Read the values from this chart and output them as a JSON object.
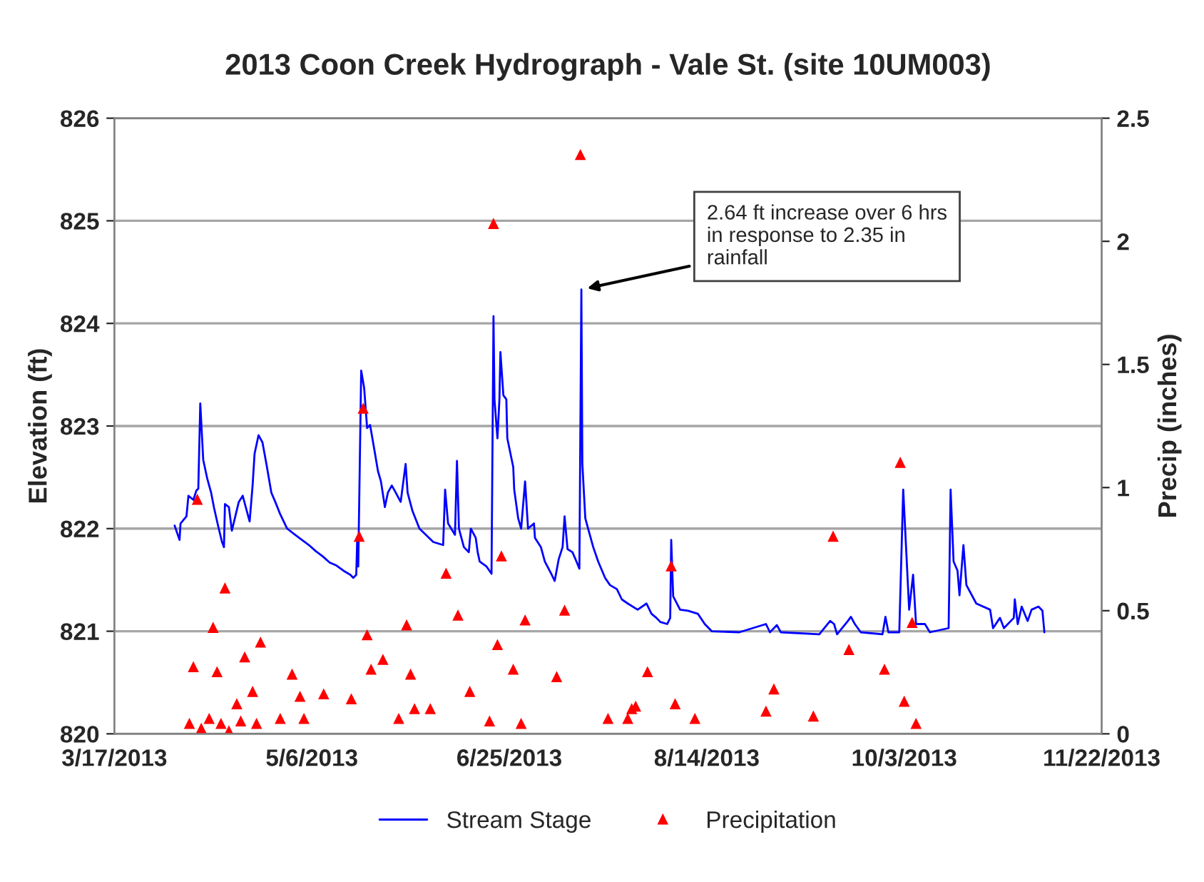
{
  "chart_data": {
    "type": "line",
    "title": "2013 Coon Creek Hydrograph - Vale St. (site 10UM003)",
    "ylabel": "Elevation (ft)",
    "y2label": "Precip (inches)",
    "xlim": [
      "2013-03-17",
      "2013-11-22"
    ],
    "xticks": [
      {
        "value": "2013-03-17",
        "label": "3/17/2013"
      },
      {
        "value": "2013-05-06",
        "label": "5/6/2013"
      },
      {
        "value": "2013-06-25",
        "label": "6/25/2013"
      },
      {
        "value": "2013-08-14",
        "label": "8/14/2013"
      },
      {
        "value": "2013-10-03",
        "label": "10/3/2013"
      },
      {
        "value": "2013-11-22",
        "label": "11/22/2013"
      }
    ],
    "ylim": [
      820,
      826
    ],
    "yticks": [
      820,
      821,
      822,
      823,
      824,
      825,
      826
    ],
    "y2lim": [
      0,
      2.5
    ],
    "y2ticks": [
      0,
      0.5,
      1,
      1.5,
      2,
      2.5
    ],
    "grid": "y",
    "legend": "bottom",
    "annotations": [
      {
        "text": "2.64 ft increase over 6 hrs\nin response to 2.35 in\nrainfall",
        "x": "2013-07-13T06:00",
        "y": 824.33
      }
    ],
    "series": [
      {
        "name": "Stream Stage",
        "color": "#0000ff",
        "marker": "none",
        "line_style": "solid",
        "x": [
          "2013-04-01T06:00",
          "2013-04-02T12:00",
          "2013-04-02T18:00",
          "2013-04-04T06:00",
          "2013-04-04T18:00",
          "2013-04-06",
          "2013-04-06T18:00",
          "2013-04-07T06:00",
          "2013-04-07T18:00",
          "2013-04-08T12:00",
          "2013-04-09T12:00",
          "2013-04-10T12:00",
          "2013-04-11T06:00",
          "2013-04-12T06:00",
          "2013-04-13T06:00",
          "2013-04-13T18:00",
          "2013-04-14",
          "2013-04-15",
          "2013-04-15T18:00",
          "2013-04-16T18:00",
          "2013-04-17T12:00",
          "2013-04-18T12:00",
          "2013-04-19T18:00",
          "2013-04-20T06:00",
          "2013-04-21",
          "2013-04-21T12:00",
          "2013-04-22T12:00",
          "2013-04-23T12:00",
          "2013-04-24T12:00",
          "2013-04-25T18:00",
          "2013-04-26T18:00",
          "2013-04-28",
          "2013-04-29T18:00",
          "2013-05-01T18:00",
          "2013-05-03T12:00",
          "2013-05-05T06:00",
          "2013-05-07",
          "2013-05-08T18:00",
          "2013-05-10T12:00",
          "2013-05-12T06:00",
          "2013-05-14",
          "2013-05-15T18:00",
          "2013-05-16T12:00",
          "2013-05-17T06:00",
          "2013-05-17T12:00",
          "2013-05-17T18:00",
          "2013-05-18T12:00",
          "2013-05-19T06:00",
          "2013-05-20",
          "2013-05-20T18:00",
          "2013-05-22",
          "2013-05-22T18:00",
          "2013-05-23T12:00",
          "2013-05-24T12:00",
          "2013-05-25T06:00",
          "2013-05-26T06:00",
          "2013-05-27T06:00",
          "2013-05-28T12:00",
          "2013-05-29T18:00",
          "2013-05-30T06:00",
          "2013-05-31T12:00",
          "2013-06-02T06:00",
          "2013-06-05T18:00",
          "2013-06-08T06:00",
          "2013-06-08T18:00",
          "2013-06-09T12:00",
          "2013-06-11T06:00",
          "2013-06-11T18:00",
          "2013-06-12T06:00",
          "2013-06-13T12:00",
          "2013-06-14T18:00",
          "2013-06-15T06:00",
          "2013-06-16T12:00",
          "2013-06-17",
          "2013-06-17T12:00",
          "2013-06-19T06:00",
          "2013-06-20T12:00",
          "2013-06-21",
          "2013-06-21T06:00",
          "2013-06-22",
          "2013-06-22T12:00",
          "2013-06-22T18:00",
          "2013-06-23T12:00",
          "2013-06-24T06:00",
          "2013-06-24T12:00",
          "2013-06-26",
          "2013-06-26T06:00",
          "2013-06-27T06:00",
          "2013-06-28",
          "2013-06-29",
          "2013-06-29T18:00",
          "2013-07-01T06:00",
          "2013-07-01T12:00",
          "2013-07-03",
          "2013-07-04",
          "2013-07-05T18:00",
          "2013-07-06T12:00",
          "2013-07-07T12:00",
          "2013-07-08T12:00",
          "2013-07-09",
          "2013-07-09T18:00",
          "2013-07-11",
          "2013-07-12",
          "2013-07-12T18:00",
          "2013-07-13T06:00",
          "2013-07-13T12:00",
          "2013-07-14T06:00",
          "2013-07-15T06:00",
          "2013-07-16T06:00",
          "2013-07-17T12:00",
          "2013-07-19T06:00",
          "2013-07-20T12:00",
          "2013-07-22T06:00",
          "2013-07-23T12:00",
          "2013-07-25",
          "2013-07-27T12:00",
          "2013-07-29T18:00",
          "2013-07-31",
          "2013-08-01T06:00",
          "2013-08-02T06:00",
          "2013-08-04",
          "2013-08-04T18:00",
          "2013-08-05",
          "2013-08-05T12:00",
          "2013-08-07T06:00",
          "2013-08-09T06:00",
          "2013-08-11T18:00",
          "2013-08-13T12:00",
          "2013-08-15T06:00",
          "2013-08-22T06:00",
          "2013-08-29",
          "2013-08-30",
          "2013-08-31T18:00",
          "2013-09-01T18:00",
          "2013-09-11T12:00",
          "2013-09-14T06:00",
          "2013-09-15T06:00",
          "2013-09-16",
          "2013-09-18T18:00",
          "2013-09-19T12:00",
          "2013-09-20T12:00",
          "2013-09-22",
          "2013-09-27T12:00",
          "2013-09-28T06:00",
          "2013-09-29",
          "2013-10-01T18:00",
          "2013-10-02T18:00",
          "2013-10-04T06:00",
          "2013-10-05T06:00",
          "2013-10-06",
          "2013-10-08T06:00",
          "2013-10-09T12:00",
          "2013-10-14T06:00",
          "2013-10-14T18:00",
          "2013-10-15T12:00",
          "2013-10-16T12:00",
          "2013-10-17",
          "2013-10-18",
          "2013-10-18T18:00",
          "2013-10-21T06:00",
          "2013-10-24T18:00",
          "2013-10-25T12:00",
          "2013-10-27T06:00",
          "2013-10-28T06:00",
          "2013-10-30T18:00",
          "2013-10-31",
          "2013-10-31T18:00",
          "2013-11-01T18:00",
          "2013-11-03T06:00",
          "2013-11-04T06:00",
          "2013-11-06",
          "2013-11-07",
          "2013-11-07T12:00"
        ],
        "values": [
          822.03,
          821.89,
          822.05,
          822.12,
          822.32,
          822.28,
          822.37,
          822.39,
          823.22,
          822.67,
          822.49,
          822.35,
          822.2,
          822.03,
          821.87,
          821.82,
          822.24,
          822.21,
          821.98,
          822.14,
          822.26,
          822.32,
          822.14,
          822.07,
          822.42,
          822.73,
          822.91,
          822.84,
          822.63,
          822.35,
          822.26,
          822.14,
          822.0,
          821.94,
          821.89,
          821.84,
          821.78,
          821.73,
          821.67,
          821.64,
          821.59,
          821.55,
          821.52,
          821.55,
          821.91,
          821.63,
          823.54,
          823.37,
          822.98,
          823.01,
          822.73,
          822.56,
          822.46,
          822.21,
          822.35,
          822.42,
          822.35,
          822.26,
          822.63,
          822.35,
          822.17,
          822.0,
          821.87,
          821.84,
          822.38,
          822.05,
          821.94,
          822.66,
          822.0,
          821.82,
          821.77,
          822.0,
          821.91,
          821.77,
          821.68,
          821.63,
          821.56,
          824.07,
          823.26,
          822.88,
          823.26,
          823.72,
          823.3,
          823.26,
          822.88,
          822.6,
          822.38,
          822.1,
          822.0,
          822.46,
          822.0,
          822.05,
          821.91,
          821.82,
          821.68,
          821.55,
          821.49,
          821.7,
          821.82,
          822.12,
          821.8,
          821.77,
          821.68,
          821.61,
          824.33,
          822.63,
          822.1,
          821.96,
          821.82,
          821.68,
          821.52,
          821.45,
          821.41,
          821.31,
          821.27,
          821.21,
          821.27,
          821.17,
          821.13,
          821.09,
          821.07,
          821.13,
          821.89,
          821.34,
          821.21,
          821.2,
          821.17,
          821.07,
          821.0,
          820.99,
          821.07,
          820.99,
          821.06,
          820.99,
          820.97,
          821.1,
          821.07,
          820.97,
          821.1,
          821.14,
          821.07,
          820.99,
          820.97,
          821.14,
          820.99,
          820.99,
          822.38,
          821.21,
          821.55,
          821.07,
          821.07,
          820.99,
          821.03,
          822.38,
          821.68,
          821.59,
          821.35,
          821.84,
          821.45,
          821.27,
          821.21,
          821.03,
          821.13,
          821.03,
          821.13,
          821.31,
          821.07,
          821.24,
          821.1,
          821.21,
          821.24,
          821.2,
          820.99
        ]
      },
      {
        "name": "Precipitation",
        "type": "scatter",
        "axis": "y2",
        "color": "#ff0000",
        "marker": "triangle",
        "x": [
          "2013-04-05",
          "2013-04-06",
          "2013-04-07",
          "2013-04-08",
          "2013-04-10",
          "2013-04-11",
          "2013-04-12",
          "2013-04-13",
          "2013-04-14",
          "2013-04-15",
          "2013-04-17",
          "2013-04-18",
          "2013-04-19",
          "2013-04-21",
          "2013-04-22",
          "2013-04-23",
          "2013-04-28",
          "2013-05-01",
          "2013-05-03",
          "2013-05-04",
          "2013-05-09",
          "2013-05-16",
          "2013-05-18",
          "2013-05-19",
          "2013-05-20",
          "2013-05-21",
          "2013-05-24",
          "2013-05-28",
          "2013-05-30",
          "2013-05-31",
          "2013-06-01",
          "2013-06-05",
          "2013-06-09",
          "2013-06-12",
          "2013-06-15",
          "2013-06-20",
          "2013-06-21",
          "2013-06-22",
          "2013-06-23",
          "2013-06-26",
          "2013-06-28",
          "2013-06-29",
          "2013-07-07",
          "2013-07-09",
          "2013-07-13",
          "2013-07-20",
          "2013-07-25",
          "2013-07-26",
          "2013-07-27",
          "2013-07-30",
          "2013-08-05",
          "2013-08-06",
          "2013-08-11",
          "2013-08-29",
          "2013-08-31",
          "2013-09-10",
          "2013-09-15",
          "2013-09-19",
          "2013-09-28",
          "2013-10-02",
          "2013-10-03",
          "2013-10-05",
          "2013-10-06"
        ],
        "values": [
          0.04,
          0.27,
          0.95,
          0.02,
          0.06,
          0.43,
          0.25,
          0.04,
          0.59,
          0.01,
          0.12,
          0.05,
          0.31,
          0.17,
          0.04,
          0.37,
          0.06,
          0.24,
          0.15,
          0.06,
          0.16,
          0.14,
          0.8,
          1.32,
          0.4,
          0.26,
          0.3,
          0.06,
          0.44,
          0.24,
          0.1,
          0.1,
          0.65,
          0.48,
          0.17,
          0.05,
          2.07,
          0.36,
          0.72,
          0.26,
          0.04,
          0.46,
          0.23,
          0.5,
          2.35,
          0.06,
          0.06,
          0.1,
          0.11,
          0.25,
          0.68,
          0.12,
          0.06,
          0.09,
          0.18,
          0.07,
          0.8,
          0.34,
          0.26,
          1.1,
          0.13,
          0.45,
          0.04
        ]
      }
    ]
  }
}
